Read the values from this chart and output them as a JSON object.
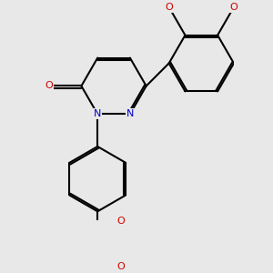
{
  "bg_color": "#e8e8e8",
  "bond_color": "#000000",
  "bond_width": 1.5,
  "dbo": 0.055,
  "atom_colors": {
    "N": "#0000cc",
    "O": "#cc0000"
  },
  "font_size": 8.0,
  "xlim": [
    -2.6,
    3.4
  ],
  "ylim": [
    -3.6,
    3.0
  ]
}
